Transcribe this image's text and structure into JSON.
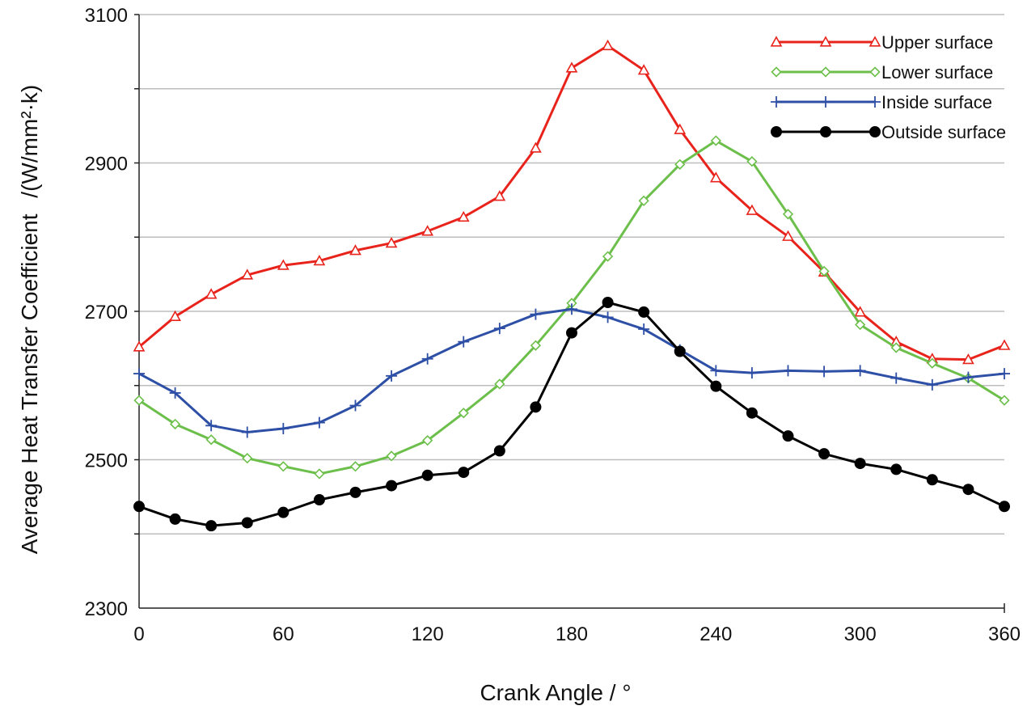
{
  "chart_data": {
    "type": "line",
    "title": "",
    "xlabel": "Crank  Angle  / °",
    "ylabel": "Average Heat Transfer Coefficient",
    "ylabel_unit": "/(W/mm²·k)",
    "xlim": [
      0,
      360
    ],
    "ylim": [
      2300,
      3100
    ],
    "x_ticks": [
      0,
      60,
      120,
      180,
      240,
      300,
      360
    ],
    "y_ticks": [
      2300,
      2500,
      2700,
      2900,
      3100
    ],
    "y_gridlines": [
      2400,
      2500,
      2600,
      2700,
      2800,
      2900,
      3000,
      3100
    ],
    "grid": true,
    "legend_position": "top-right",
    "x": [
      0,
      15,
      30,
      45,
      60,
      75,
      90,
      105,
      120,
      135,
      150,
      165,
      180,
      195,
      210,
      225,
      240,
      255,
      270,
      285,
      300,
      315,
      330,
      345,
      360
    ],
    "series": [
      {
        "name": "Upper surface",
        "color": "#e8231b",
        "marker": "triangle-open",
        "values": [
          2652,
          2693,
          2723,
          2749,
          2762,
          2768,
          2782,
          2792,
          2808,
          2827,
          2855,
          2920,
          3028,
          3058,
          3025,
          2945,
          2880,
          2836,
          2801,
          2753,
          2699,
          2659,
          2636,
          2635,
          2654
        ]
      },
      {
        "name": "Lower surface",
        "color": "#6cbf4a",
        "marker": "diamond-open",
        "values": [
          2580,
          2548,
          2527,
          2502,
          2491,
          2481,
          2491,
          2505,
          2526,
          2563,
          2602,
          2654,
          2711,
          2774,
          2849,
          2898,
          2930,
          2902,
          2831,
          2754,
          2682,
          2651,
          2630,
          2610,
          2580
        ]
      },
      {
        "name": "Inside surface",
        "color": "#2e4fa6",
        "marker": "plus",
        "values": [
          2616,
          2590,
          2546,
          2537,
          2542,
          2550,
          2573,
          2613,
          2636,
          2659,
          2677,
          2696,
          2703,
          2692,
          2676,
          2648,
          2620,
          2617,
          2620,
          2619,
          2620,
          2610,
          2601,
          2611,
          2616
        ]
      },
      {
        "name": "Outside surface",
        "color": "#000000",
        "marker": "circle-filled",
        "values": [
          2437,
          2420,
          2411,
          2415,
          2429,
          2446,
          2456,
          2465,
          2479,
          2483,
          2512,
          2571,
          2671,
          2712,
          2699,
          2646,
          2599,
          2563,
          2532,
          2508,
          2495,
          2487,
          2473,
          2460,
          2437
        ]
      }
    ]
  }
}
